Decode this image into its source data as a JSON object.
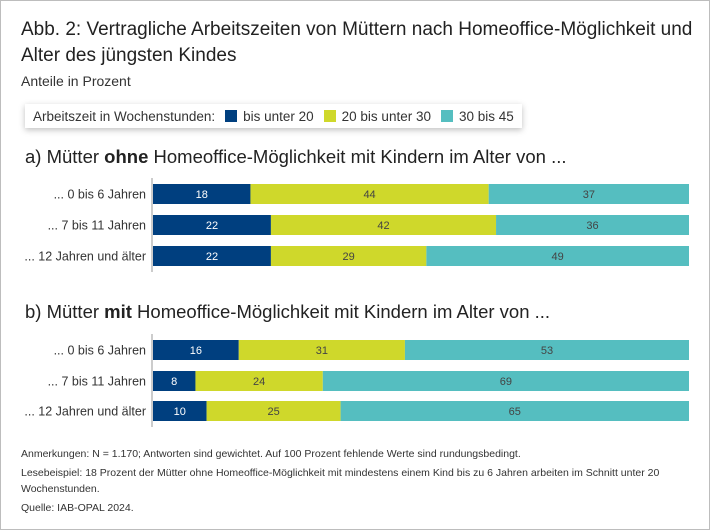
{
  "title": "Abb. 2: Vertragliche Arbeitszeiten von Müttern nach Homeoffice-Möglichkeit und Alter des jüngsten Kindes",
  "subtitle": "Anteile in Prozent",
  "legend": {
    "label": "Arbeitszeit in Wochenstunden:",
    "items": [
      "bis unter 20",
      "20 bis unter 30",
      "30 bis 45"
    ]
  },
  "panels": [
    {
      "prefix": "a) Mütter ",
      "bold": "ohne",
      "suffix": " Homeoffice-Möglichkeit mit Kindern im Alter von ..."
    },
    {
      "prefix": "b) Mütter ",
      "bold": "mit",
      "suffix": " Homeoffice-Möglichkeit mit Kindern im Alter von ..."
    }
  ],
  "notes": [
    "Anmerkungen: N = 1.170; Antworten sind gewichtet. Auf 100 Prozent fehlende Werte sind rundungsbedingt.",
    "Lesebeispiel: 18 Prozent der Mütter ohne Homeoffice-Möglichkeit mit mindestens einem Kind bis zu 6 Jahren arbeiten im Schnitt unter 20 Wochenstunden.",
    "Quelle: IAB-OPAL 2024."
  ],
  "chart_data": [
    {
      "type": "bar",
      "stacked": true,
      "orientation": "horizontal",
      "title": "a) Mütter ohne Homeoffice-Möglichkeit mit Kindern im Alter von ...",
      "categories": [
        "... 0 bis 6 Jahren",
        "... 7 bis 11 Jahren",
        "... 12 Jahren und älter"
      ],
      "series": [
        {
          "name": "bis unter 20",
          "values": [
            18,
            22,
            22
          ]
        },
        {
          "name": "20 bis unter 30",
          "values": [
            44,
            42,
            29
          ]
        },
        {
          "name": "30 bis 45",
          "values": [
            37,
            36,
            49
          ]
        }
      ]
    },
    {
      "type": "bar",
      "stacked": true,
      "orientation": "horizontal",
      "title": "b) Mütter mit Homeoffice-Möglichkeit mit Kindern im Alter von ...",
      "categories": [
        "... 0 bis 6 Jahren",
        "... 7 bis 11 Jahren",
        "... 12 Jahren und älter"
      ],
      "series": [
        {
          "name": "bis unter 20",
          "values": [
            16,
            8,
            10
          ]
        },
        {
          "name": "20 bis unter 30",
          "values": [
            31,
            24,
            25
          ]
        },
        {
          "name": "30 bis 45",
          "values": [
            53,
            69,
            65
          ]
        }
      ]
    }
  ],
  "colors": [
    "#003f7f",
    "#cfd82b",
    "#55bec0"
  ],
  "label_colors": [
    "#ffffff",
    "#444444",
    "#444444"
  ]
}
